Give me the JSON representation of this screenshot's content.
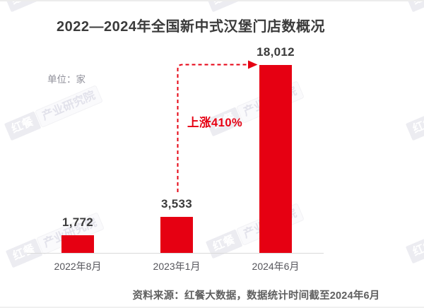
{
  "chart_data": {
    "type": "bar",
    "title": "2022—2024年全国新中式汉堡门店数概况",
    "unit_label": "单位：家",
    "categories": [
      "2022年8月",
      "2023年1月",
      "2024年6月"
    ],
    "values": [
      1772,
      3533,
      18012
    ],
    "value_labels": [
      "1,772",
      "3,533",
      "18,012"
    ],
    "ylim": [
      0,
      18012
    ],
    "grid": "off",
    "legend": "none",
    "annotation": {
      "text": "上涨410%",
      "from_category": "2023年1月",
      "to_category": "2024年6月",
      "style": "dashed-arrow"
    },
    "source": "资料来源：红餐大数据，数据统计时间截至2024年6月",
    "bar_color": "#e60012",
    "accent_red": "#e60012"
  },
  "watermark": {
    "tag": "红餐",
    "text": "产业研究院"
  }
}
